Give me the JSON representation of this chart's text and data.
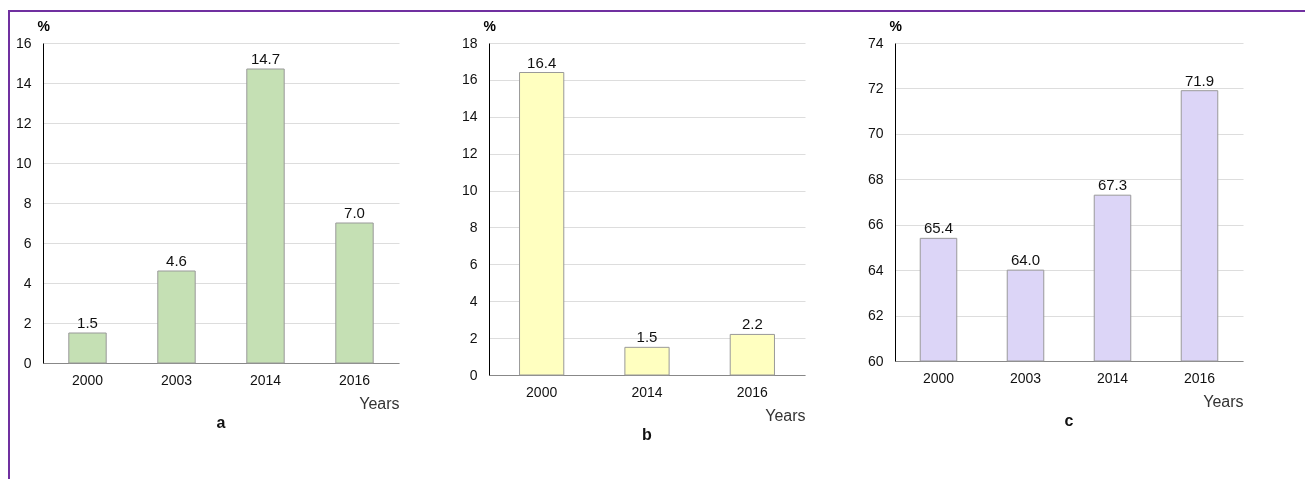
{
  "chart_data": [
    {
      "type": "bar",
      "title": "a",
      "xlabel": "Years",
      "ylabel": "%",
      "categories": [
        "2000",
        "2003",
        "2014",
        "2016"
      ],
      "values": [
        1.5,
        4.6,
        14.7,
        7.0
      ],
      "value_labels": [
        "1.5",
        "4.6",
        "14.7",
        "7.0"
      ],
      "color": "#c5e0b4",
      "ylim": [
        0,
        16
      ],
      "yticks": [
        0,
        2,
        4,
        6,
        8,
        10,
        12,
        14,
        16
      ],
      "grid": "y"
    },
    {
      "type": "bar",
      "title": "b",
      "xlabel": "Years",
      "ylabel": "%",
      "categories": [
        "2000",
        "2014",
        "2016"
      ],
      "values": [
        16.4,
        1.5,
        2.2
      ],
      "value_labels": [
        "16.4",
        "1.5",
        "2.2"
      ],
      "color": "#ffffc0",
      "ylim": [
        0,
        18
      ],
      "yticks": [
        0,
        2,
        4,
        6,
        8,
        10,
        12,
        14,
        16,
        18
      ],
      "grid": "y"
    },
    {
      "type": "bar",
      "title": "c",
      "xlabel": "Years",
      "ylabel": "%",
      "categories": [
        "2000",
        "2003",
        "2014",
        "2016"
      ],
      "values": [
        65.4,
        64.0,
        67.3,
        71.9
      ],
      "value_labels": [
        "65.4",
        "64.0",
        "67.3",
        "71.9"
      ],
      "color": "#dcd5f7",
      "ylim": [
        60,
        74
      ],
      "yticks": [
        60,
        62,
        64,
        66,
        68,
        70,
        72,
        74
      ],
      "grid": "y"
    }
  ]
}
